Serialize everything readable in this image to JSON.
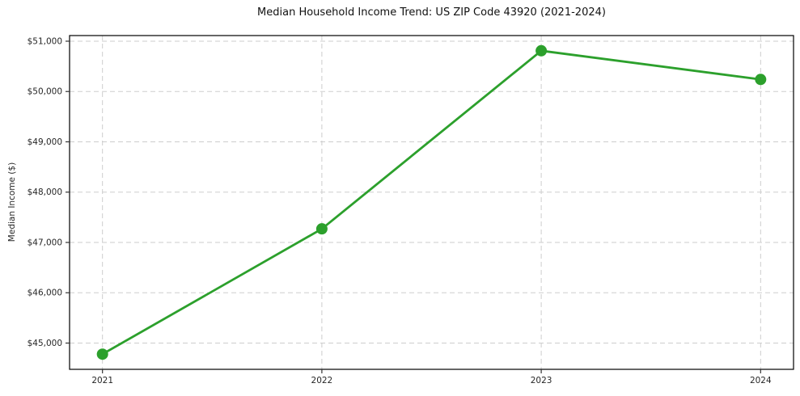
{
  "chart_data": {
    "type": "line",
    "title": "Median Household Income Trend: US ZIP Code 43920 (2021-2024)",
    "xlabel": "",
    "ylabel": "Median Income ($)",
    "categories": [
      2021,
      2022,
      2023,
      2024
    ],
    "xtick_labels": [
      "2021",
      "2022",
      "2023",
      "2024"
    ],
    "series": [
      {
        "name": "Median Household Income",
        "values": [
          44780,
          47270,
          50810,
          50240
        ],
        "color": "#2ca02c",
        "marker": "circle"
      }
    ],
    "ytick_values": [
      45000,
      46000,
      47000,
      48000,
      49000,
      50000,
      51000
    ],
    "ytick_labels": [
      "$45,000",
      "$46,000",
      "$47,000",
      "$48,000",
      "$49,000",
      "$50,000",
      "$51,000"
    ],
    "ylim": [
      44478,
      51112
    ],
    "xlim": [
      2020.85,
      2024.15
    ],
    "grid": true,
    "legend_position": "none",
    "colors": {
      "background": "#ffffff",
      "grid": "#cdcdcd",
      "spine": "#000000",
      "tick_text": "#262626",
      "line": "#2ca02c"
    }
  }
}
